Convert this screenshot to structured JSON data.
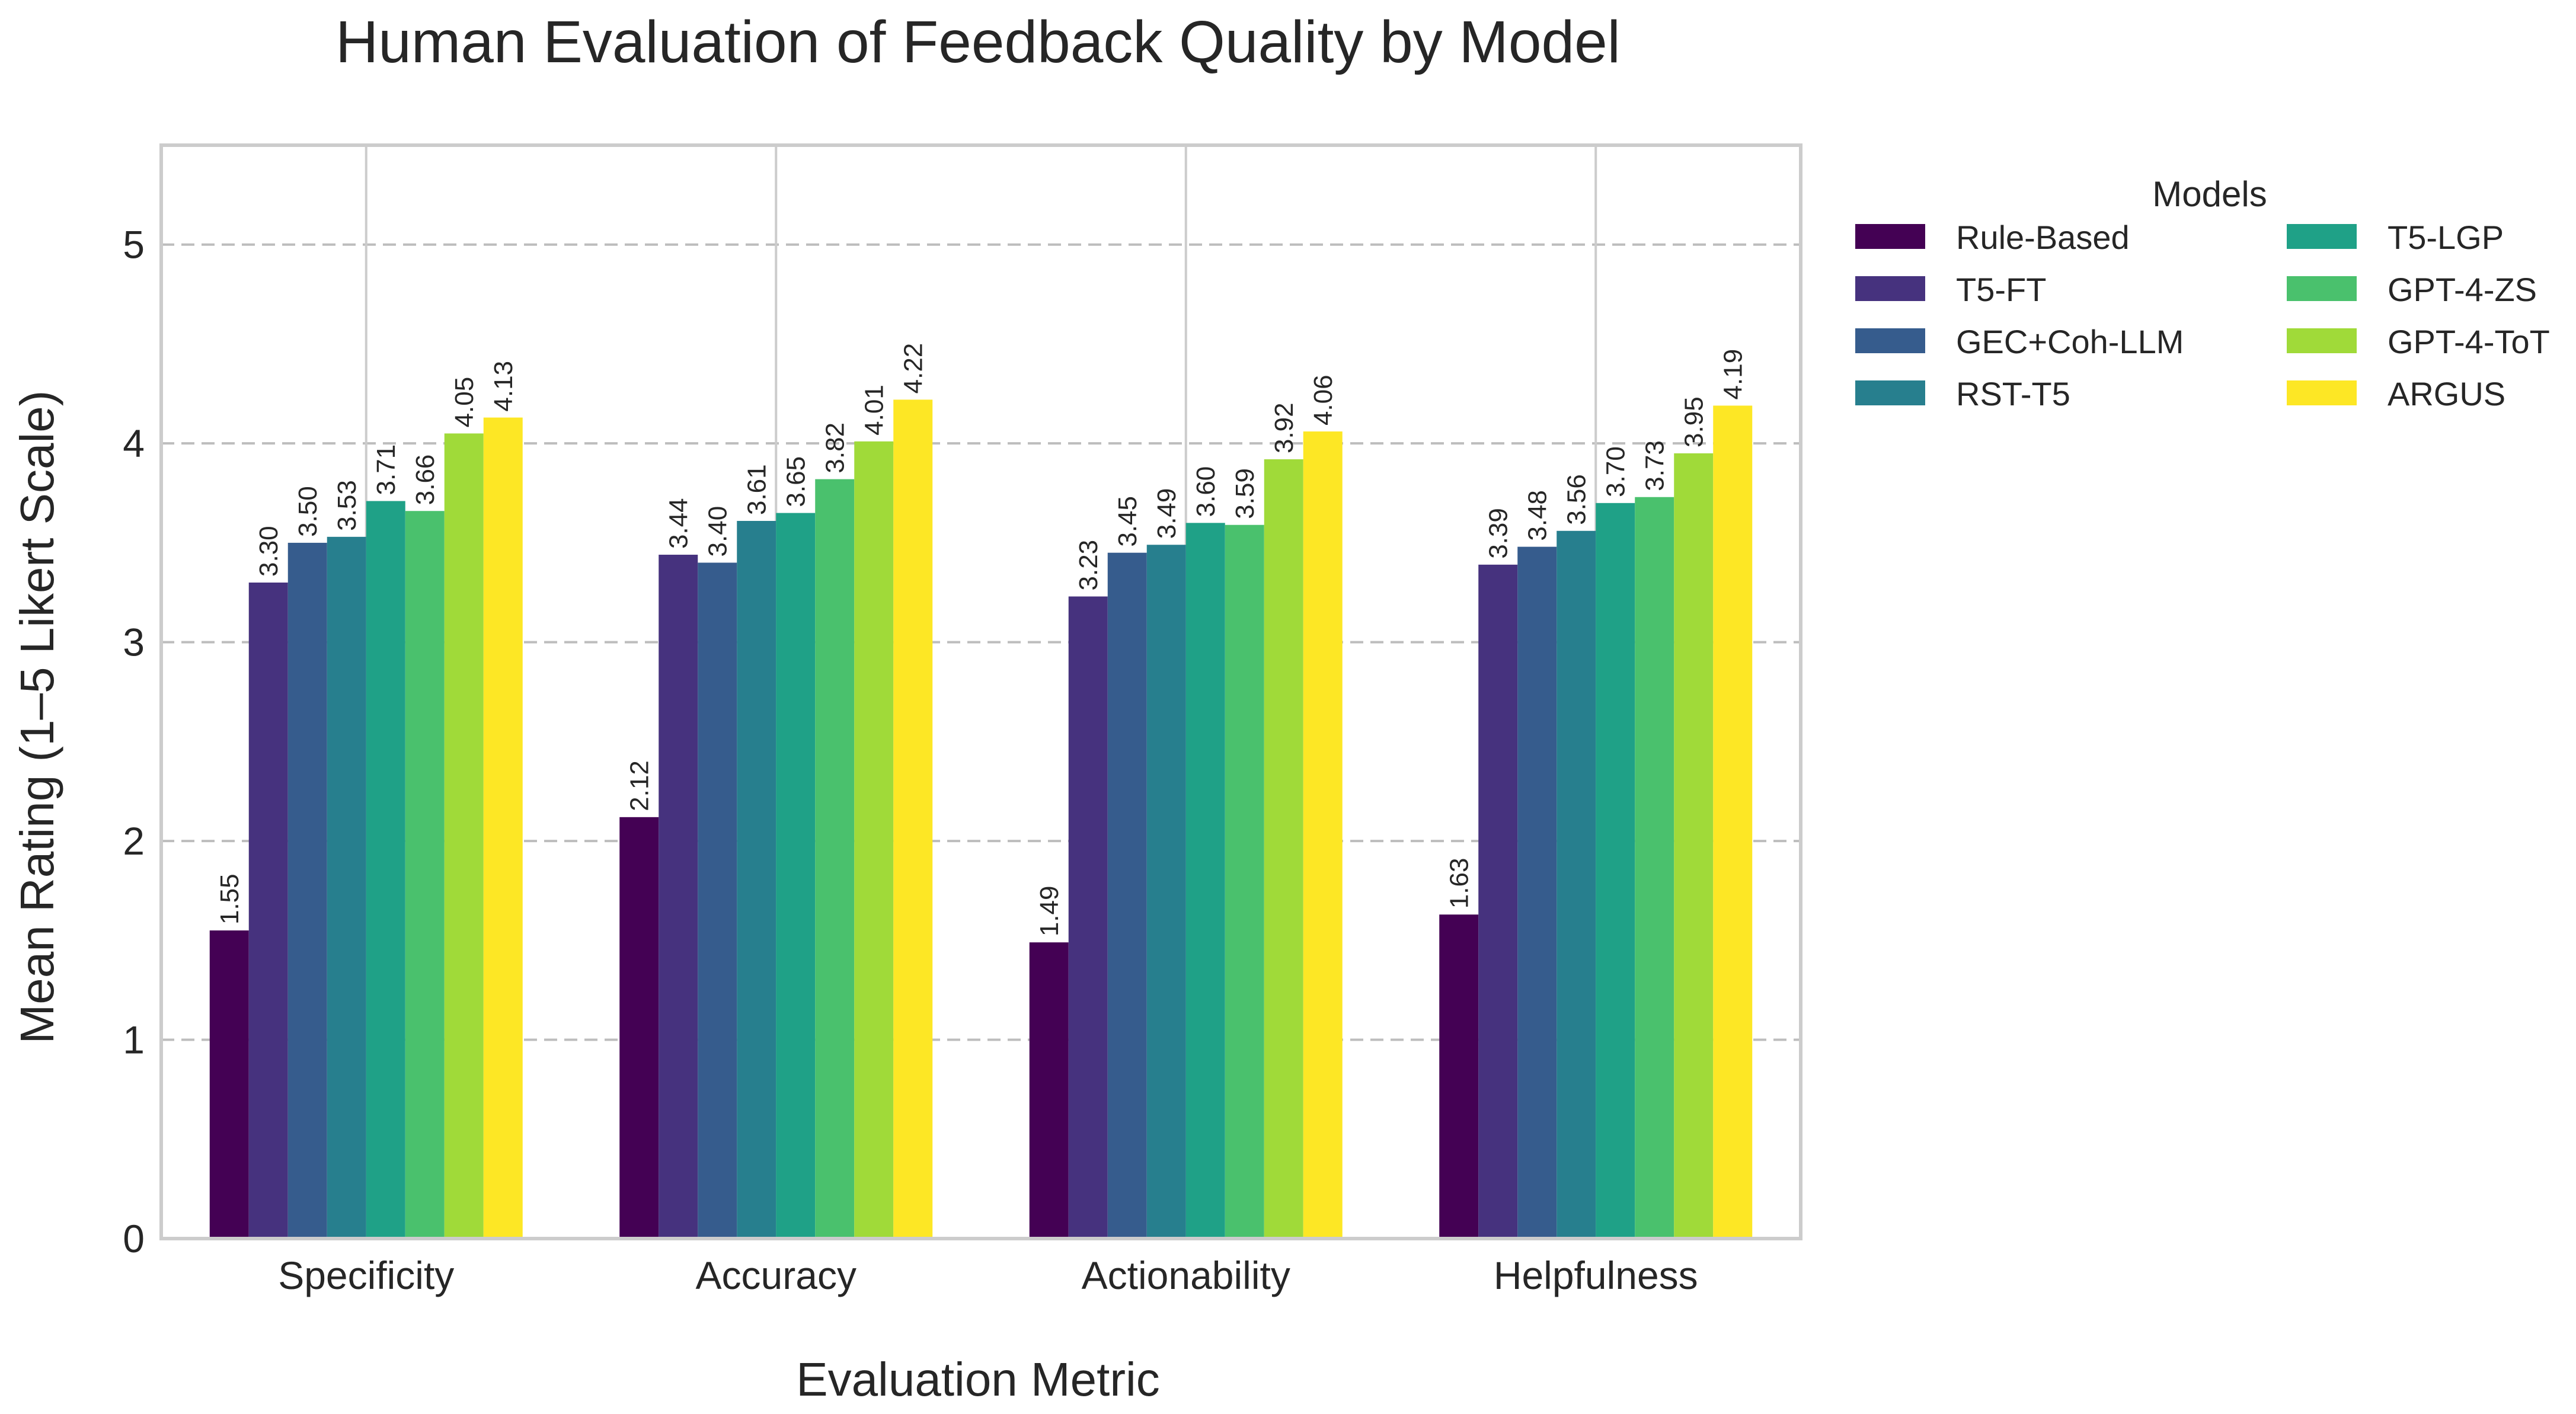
{
  "chart_data": {
    "type": "bar",
    "title": "Human Evaluation of Feedback Quality by Model",
    "xlabel": "Evaluation Metric",
    "ylabel": "Mean Rating (1–5 Likert Scale)",
    "ylim": [
      0,
      5.5
    ],
    "yticks": [
      0,
      1,
      2,
      3,
      4,
      5
    ],
    "grid": true,
    "legend": {
      "title": "Models",
      "placement": "outside-right"
    },
    "categories": [
      "Specificity",
      "Accuracy",
      "Actionability",
      "Helpfulness"
    ],
    "series": [
      {
        "name": "Rule-Based",
        "color": "#440154",
        "values": [
          1.55,
          2.12,
          1.49,
          1.63
        ],
        "labels": [
          "1.55",
          "2.12",
          "1.49",
          "1.63"
        ]
      },
      {
        "name": "T5-FT",
        "color": "#46327e",
        "values": [
          3.3,
          3.44,
          3.23,
          3.39
        ],
        "labels": [
          "3.30",
          "3.44",
          "3.23",
          "3.39"
        ]
      },
      {
        "name": "GEC+Coh-LLM",
        "color": "#365c8d",
        "values": [
          3.5,
          3.4,
          3.45,
          3.48
        ],
        "labels": [
          "3.50",
          "3.40",
          "3.45",
          "3.48"
        ]
      },
      {
        "name": "RST-T5",
        "color": "#277f8e",
        "values": [
          3.53,
          3.61,
          3.49,
          3.56
        ],
        "labels": [
          "3.53",
          "3.61",
          "3.49",
          "3.56"
        ]
      },
      {
        "name": "T5-LGP",
        "color": "#1fa187",
        "values": [
          3.71,
          3.65,
          3.6,
          3.7
        ],
        "labels": [
          "3.71",
          "3.65",
          "3.60",
          "3.70"
        ]
      },
      {
        "name": "GPT-4-ZS",
        "color": "#4ac16d",
        "values": [
          3.66,
          3.82,
          3.59,
          3.73
        ],
        "labels": [
          "3.66",
          "3.82",
          "3.59",
          "3.73"
        ]
      },
      {
        "name": "GPT-4-ToT",
        "color": "#a0da39",
        "values": [
          4.05,
          4.01,
          3.92,
          3.95
        ],
        "labels": [
          "4.05",
          "4.01",
          "3.92",
          "3.95"
        ]
      },
      {
        "name": "ARGUS",
        "color": "#fde725",
        "values": [
          4.13,
          4.22,
          4.06,
          4.19
        ],
        "labels": [
          "4.13",
          "4.22",
          "4.06",
          "4.19"
        ]
      }
    ]
  }
}
